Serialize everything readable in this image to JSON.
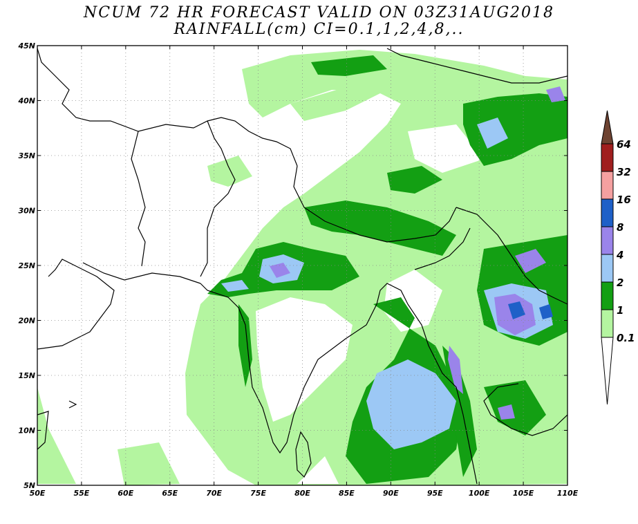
{
  "title_line1": "NCUM 72 HR FORECAST VALID ON 03Z31AUG2018",
  "title_line2": "RAINFALL(cm) CI=0.1,1,2,4,8,..",
  "map": {
    "lon_range": [
      50,
      110
    ],
    "lat_range": [
      5,
      45
    ],
    "lon_ticks": [
      50,
      55,
      60,
      65,
      70,
      75,
      80,
      85,
      90,
      95,
      100,
      105,
      110
    ],
    "lat_ticks": [
      5,
      10,
      15,
      20,
      25,
      30,
      35,
      40,
      45
    ],
    "lon_labels": [
      "50E",
      "55E",
      "60E",
      "65E",
      "70E",
      "75E",
      "80E",
      "85E",
      "90E",
      "95E",
      "100E",
      "105E",
      "110E"
    ],
    "lat_labels": [
      "5N",
      "10N",
      "15N",
      "20N",
      "25N",
      "30N",
      "35N",
      "40N",
      "45N"
    ],
    "grid": "dotted"
  },
  "colorbar": {
    "levels": [
      "0.1",
      "1",
      "2",
      "4",
      "8",
      "16",
      "32",
      "64"
    ],
    "colors": [
      "#ffffff",
      "#b4f5a0",
      "#139f13",
      "#9cc8f5",
      "#9a84ea",
      "#1e60c8",
      "#f5a0a0",
      "#a01e1e",
      "#6e4332"
    ]
  }
}
